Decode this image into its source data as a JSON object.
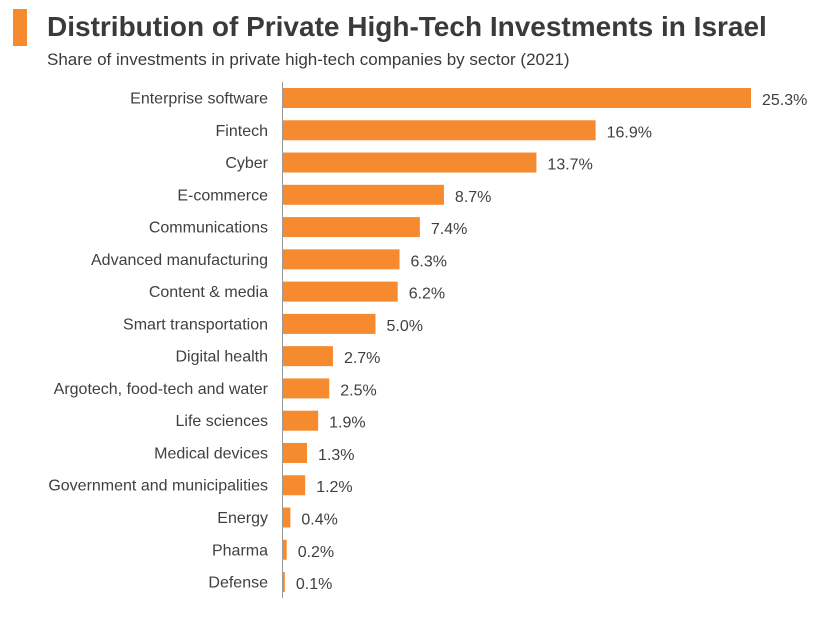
{
  "title": "Distribution of Private High-Tech Investments in Israel",
  "subtitle": "Share of investments in private high-tech companies by sector (2021)",
  "colors": {
    "bar": "#f58a2f",
    "accent": "#f58a2f",
    "text": "#404040"
  },
  "chart_data": {
    "type": "bar",
    "orientation": "horizontal",
    "title": "Distribution of Private High-Tech Investments in Israel",
    "subtitle": "Share of investments in private high-tech companies by sector (2021)",
    "categories": [
      "Enterprise software",
      "Fintech",
      "Cyber",
      "E-commerce",
      "Communications",
      "Advanced manufacturing",
      "Content & media",
      "Smart transportation",
      "Digital health",
      "Argotech, food-tech and water",
      "Life sciences",
      "Medical devices",
      "Government and municipalities",
      "Energy",
      "Pharma",
      "Defense"
    ],
    "values": [
      25.3,
      16.9,
      13.7,
      8.7,
      7.4,
      6.3,
      6.2,
      5.0,
      2.7,
      2.5,
      1.9,
      1.3,
      1.2,
      0.4,
      0.2,
      0.1
    ],
    "labels": [
      "25.3%",
      "16.9%",
      "13.7%",
      "8.7%",
      "7.4%",
      "6.3%",
      "6.2%",
      "5.0%",
      "2.7%",
      "2.5%",
      "1.9%",
      "1.3%",
      "1.2%",
      "0.4%",
      "0.2%",
      "0.1%"
    ],
    "unit": "%",
    "grid": false,
    "legend": "none"
  }
}
